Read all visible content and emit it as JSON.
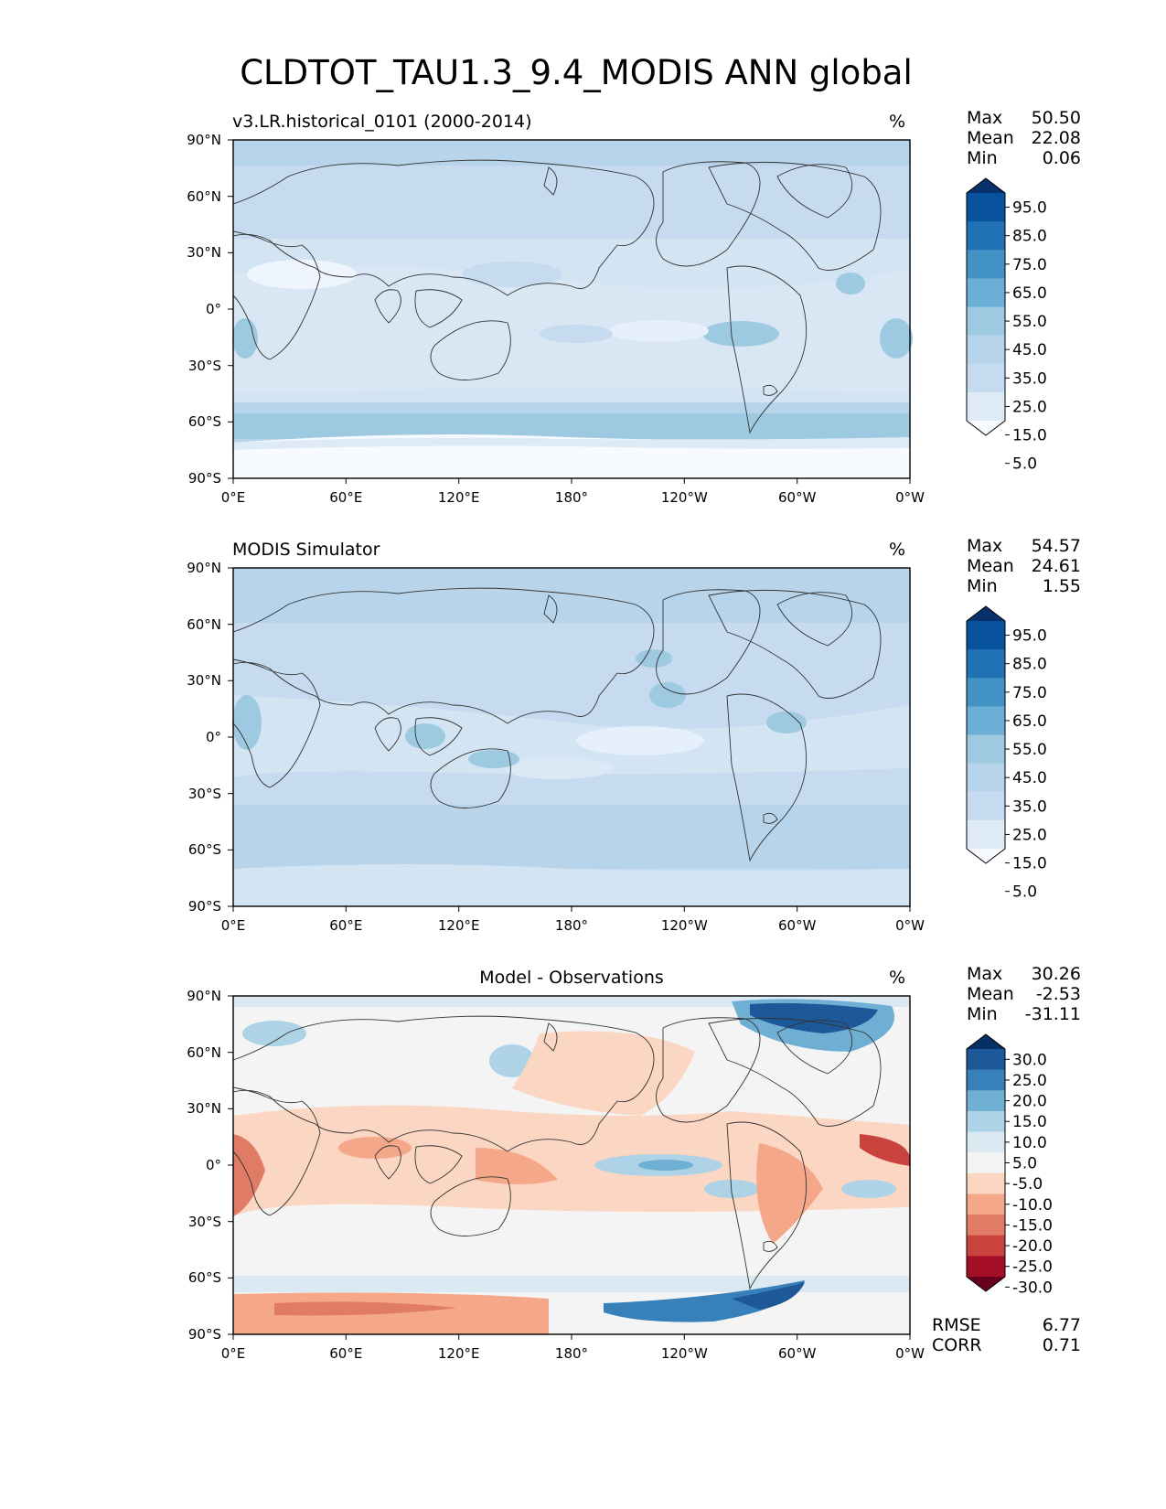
{
  "title": "CLDTOT_TAU1.3_9.4_MODIS ANN global",
  "stat_labels": {
    "max": "Max",
    "mean": "Mean",
    "min": "Min",
    "rmse": "RMSE",
    "corr": "CORR"
  },
  "summary": {
    "rmse": "6.77",
    "corr": "0.71"
  },
  "colors": {
    "blues": [
      "#f7fbff",
      "#deebf7",
      "#c6dbef",
      "#b7d4ea",
      "#9ecae1",
      "#6baed6",
      "#4292c6",
      "#2171b5",
      "#08519c",
      "#08306b"
    ],
    "diff": [
      "#67001f",
      "#a50f26",
      "#c9423d",
      "#e07b66",
      "#f4a889",
      "#fbd6c3",
      "#f4f4f4",
      "#dbeaf2",
      "#aed3e6",
      "#6fafd4",
      "#3780b9",
      "#1d5899",
      "#053061"
    ],
    "coast": "#333333"
  },
  "chart_data": [
    {
      "type": "heatmap",
      "name": "test",
      "title": "v3.LR.historical_0101 (2000-2014)",
      "units": "%",
      "stats": {
        "max": "50.50",
        "mean": "22.08",
        "min": "0.06"
      },
      "xlabels": [
        "0°E",
        "60°E",
        "120°E",
        "180°",
        "120°W",
        "60°W",
        "0°W"
      ],
      "ylabels": [
        "90°N",
        "60°N",
        "30°N",
        "0°",
        "30°S",
        "60°S",
        "90°S"
      ],
      "levels": [
        "5.0",
        "15.0",
        "25.0",
        "35.0",
        "45.0",
        "55.0",
        "65.0",
        "75.0",
        "85.0",
        "95.0"
      ],
      "xlim": [
        0,
        360
      ],
      "ylim": [
        -90,
        90
      ]
    },
    {
      "type": "heatmap",
      "name": "ref",
      "title": "MODIS Simulator",
      "units": "%",
      "stats": {
        "max": "54.57",
        "mean": "24.61",
        "min": "1.55"
      },
      "xlabels": [
        "0°E",
        "60°E",
        "120°E",
        "180°",
        "120°W",
        "60°W",
        "0°W"
      ],
      "ylabels": [
        "90°N",
        "60°N",
        "30°N",
        "0°",
        "30°S",
        "60°S",
        "90°S"
      ],
      "levels": [
        "5.0",
        "15.0",
        "25.0",
        "35.0",
        "45.0",
        "55.0",
        "65.0",
        "75.0",
        "85.0",
        "95.0"
      ],
      "xlim": [
        0,
        360
      ],
      "ylim": [
        -90,
        90
      ]
    },
    {
      "type": "heatmap",
      "name": "diff",
      "title": "Model - Observations",
      "units": "%",
      "stats": {
        "max": "30.26",
        "mean": "-2.53",
        "min": "-31.11"
      },
      "xlabels": [
        "0°E",
        "60°E",
        "120°E",
        "180°",
        "120°W",
        "60°W",
        "0°W"
      ],
      "ylabels": [
        "90°N",
        "60°N",
        "30°N",
        "0°",
        "30°S",
        "60°S",
        "90°S"
      ],
      "levels": [
        "30.0",
        "25.0",
        "20.0",
        "15.0",
        "10.0",
        "5.0",
        "-5.0",
        "-10.0",
        "-15.0",
        "-20.0",
        "-25.0",
        "-30.0"
      ],
      "xlim": [
        0,
        360
      ],
      "ylim": [
        -90,
        90
      ]
    }
  ]
}
